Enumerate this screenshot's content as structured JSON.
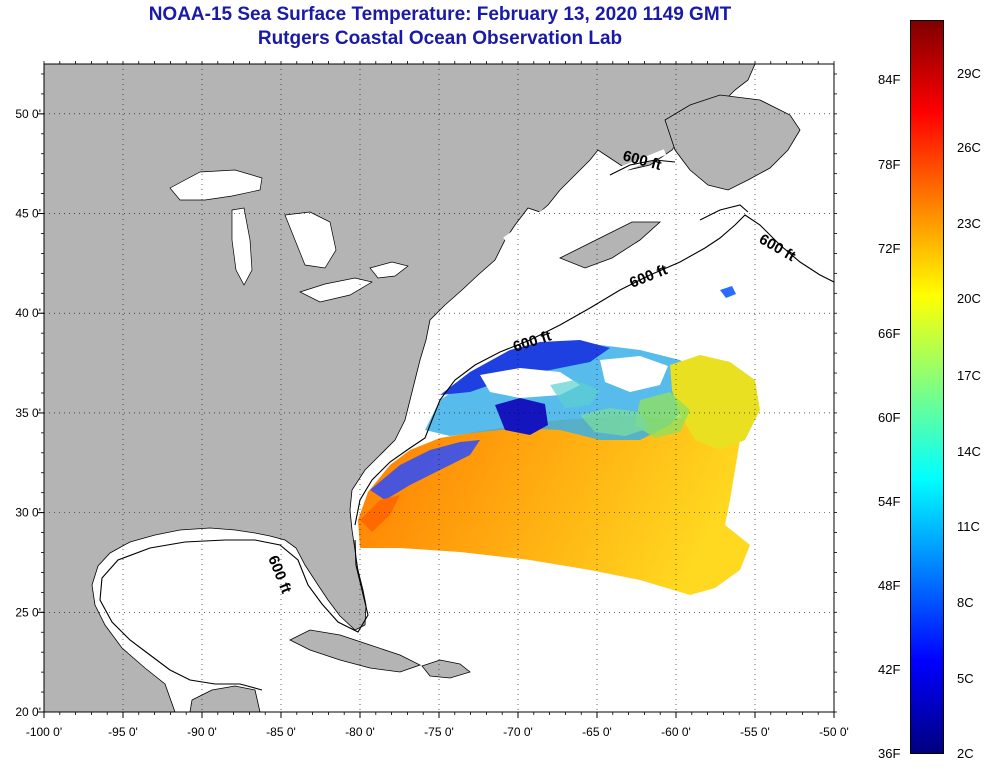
{
  "title": {
    "line1": "NOAA-15 Sea Surface Temperature:  February 13, 2020 1149 GMT",
    "line2": "Rutgers Coastal Ocean Observation Lab"
  },
  "map": {
    "lon_range": [
      -100,
      -50
    ],
    "lat_range": [
      20,
      52.5
    ],
    "lon_ticks": [
      "-100 0'",
      "-95 0'",
      "-90 0'",
      "-85 0'",
      "-80 0'",
      "-75 0'",
      "-70 0'",
      "-65 0'",
      "-60 0'",
      "-55 0'",
      "-50 0'"
    ],
    "lat_ticks": [
      "50 0'",
      "45 0'",
      "40 0'",
      "35 0'",
      "30 0'",
      "25 0'",
      "20 0'"
    ],
    "grid": "dotted",
    "land_color": "#b4b4b4",
    "ocean_color": "#ffffff",
    "contour_label": "600 ft",
    "contour_labels": [
      "600 ft",
      "600 ft",
      "600 ft",
      "600 ft",
      "600 ft"
    ]
  },
  "colorbar": {
    "fahrenheit_labels": [
      "84F",
      "78F",
      "72F",
      "66F",
      "60F",
      "54F",
      "48F",
      "42F",
      "36F"
    ],
    "celsius_labels": [
      "29C",
      "26C",
      "23C",
      "20C",
      "17C",
      "14C",
      "11C",
      "8C",
      "5C",
      "2C"
    ],
    "colors": [
      "#00007f",
      "#0000ff",
      "#0080ff",
      "#00ffff",
      "#80ff80",
      "#ffff00",
      "#ff8000",
      "#ff0000",
      "#7f0000"
    ]
  }
}
